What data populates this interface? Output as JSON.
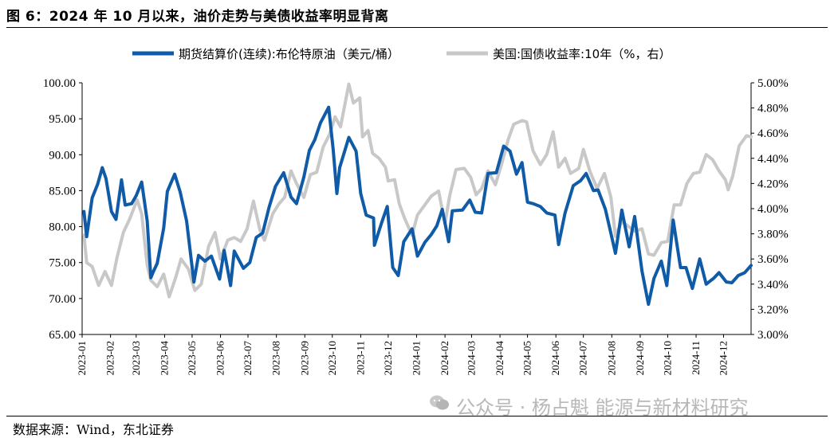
{
  "header": {
    "title": "图 6：2024 年 10 月以来，油价走势与美债收益率明显背离"
  },
  "footer": {
    "source": "数据来源：Wind，东北证券",
    "watermark": "公众号 · 杨占魁 能源与新材料研究"
  },
  "colors": {
    "brent": "#0F5BA7",
    "treasury": "#C8C8C8"
  },
  "chart_data": {
    "type": "line",
    "legend_placement": "top-center",
    "grid": false,
    "x_range": [
      "2023-01-01",
      "2024-12-31"
    ],
    "x_ticks": [
      "2023-01",
      "2023-02",
      "2023-03",
      "2023-04",
      "2023-05",
      "2023-06",
      "2023-07",
      "2023-08",
      "2023-09",
      "2023-10",
      "2023-11",
      "2023-12",
      "2024-01",
      "2024-02",
      "2024-03",
      "2024-04",
      "2024-05",
      "2024-06",
      "2024-07",
      "2024-08",
      "2024-09",
      "2024-10",
      "2024-11",
      "2024-12"
    ],
    "y_left": {
      "min": 65,
      "max": 100,
      "step": 5,
      "tick_labels": [
        "65.00",
        "70.00",
        "75.00",
        "80.00",
        "85.00",
        "90.00",
        "95.00",
        "100.00"
      ]
    },
    "y_right": {
      "min": 3.0,
      "max": 5.0,
      "step": 0.2,
      "tick_labels": [
        "3.00%",
        "3.20%",
        "3.40%",
        "3.60%",
        "3.80%",
        "4.00%",
        "4.20%",
        "4.40%",
        "4.60%",
        "4.80%",
        "5.00%"
      ]
    },
    "series": [
      {
        "name": "期货结算价(连续):布伦特原油（美元/桶）",
        "axis": "left",
        "color": "#0F5BA7",
        "points": [
          [
            "2023-01-03",
            82.1
          ],
          [
            "2023-01-06",
            78.6
          ],
          [
            "2023-01-12",
            84.0
          ],
          [
            "2023-01-18",
            85.9
          ],
          [
            "2023-01-23",
            88.2
          ],
          [
            "2023-01-27",
            86.7
          ],
          [
            "2023-02-02",
            82.1
          ],
          [
            "2023-02-07",
            81.0
          ],
          [
            "2023-02-13",
            86.5
          ],
          [
            "2023-02-17",
            83.0
          ],
          [
            "2023-02-24",
            83.2
          ],
          [
            "2023-03-01",
            84.3
          ],
          [
            "2023-03-07",
            86.2
          ],
          [
            "2023-03-13",
            80.8
          ],
          [
            "2023-03-17",
            72.9
          ],
          [
            "2023-03-20",
            73.8
          ],
          [
            "2023-03-24",
            74.9
          ],
          [
            "2023-03-31",
            79.8
          ],
          [
            "2023-04-04",
            84.9
          ],
          [
            "2023-04-12",
            87.3
          ],
          [
            "2023-04-18",
            84.8
          ],
          [
            "2023-04-25",
            80.8
          ],
          [
            "2023-05-03",
            72.3
          ],
          [
            "2023-05-08",
            76.0
          ],
          [
            "2023-05-15",
            75.2
          ],
          [
            "2023-05-22",
            75.9
          ],
          [
            "2023-05-31",
            72.7
          ],
          [
            "2023-06-05",
            76.7
          ],
          [
            "2023-06-12",
            71.8
          ],
          [
            "2023-06-16",
            76.6
          ],
          [
            "2023-06-26",
            74.2
          ],
          [
            "2023-07-03",
            75.0
          ],
          [
            "2023-07-10",
            78.5
          ],
          [
            "2023-07-17",
            79.1
          ],
          [
            "2023-07-24",
            82.7
          ],
          [
            "2023-07-31",
            85.6
          ],
          [
            "2023-08-09",
            87.5
          ],
          [
            "2023-08-17",
            84.1
          ],
          [
            "2023-08-23",
            83.2
          ],
          [
            "2023-08-31",
            86.9
          ],
          [
            "2023-09-06",
            90.6
          ],
          [
            "2023-09-12",
            92.1
          ],
          [
            "2023-09-18",
            94.4
          ],
          [
            "2023-09-27",
            96.6
          ],
          [
            "2023-10-02",
            90.7
          ],
          [
            "2023-10-06",
            84.6
          ],
          [
            "2023-10-09",
            88.2
          ],
          [
            "2023-10-19",
            92.4
          ],
          [
            "2023-10-27",
            90.5
          ],
          [
            "2023-11-01",
            84.6
          ],
          [
            "2023-11-07",
            81.6
          ],
          [
            "2023-11-15",
            81.2
          ],
          [
            "2023-11-16",
            77.4
          ],
          [
            "2023-11-24",
            80.6
          ],
          [
            "2023-11-30",
            82.8
          ],
          [
            "2023-12-06",
            74.3
          ],
          [
            "2023-12-12",
            73.2
          ],
          [
            "2023-12-18",
            77.9
          ],
          [
            "2023-12-27",
            79.7
          ],
          [
            "2024-01-02",
            75.9
          ],
          [
            "2024-01-10",
            77.8
          ],
          [
            "2024-01-17",
            78.9
          ],
          [
            "2024-01-23",
            80.1
          ],
          [
            "2024-01-29",
            82.4
          ],
          [
            "2024-02-05",
            77.9
          ],
          [
            "2024-02-09",
            82.2
          ],
          [
            "2024-02-20",
            82.3
          ],
          [
            "2024-02-28",
            83.7
          ],
          [
            "2024-03-05",
            82.0
          ],
          [
            "2024-03-12",
            81.9
          ],
          [
            "2024-03-19",
            87.4
          ],
          [
            "2024-03-28",
            87.5
          ],
          [
            "2024-04-05",
            91.2
          ],
          [
            "2024-04-12",
            90.5
          ],
          [
            "2024-04-19",
            87.3
          ],
          [
            "2024-04-25",
            88.9
          ],
          [
            "2024-05-01",
            83.4
          ],
          [
            "2024-05-07",
            83.2
          ],
          [
            "2024-05-15",
            82.8
          ],
          [
            "2024-05-22",
            81.9
          ],
          [
            "2024-05-31",
            81.6
          ],
          [
            "2024-06-04",
            77.5
          ],
          [
            "2024-06-11",
            81.9
          ],
          [
            "2024-06-20",
            85.7
          ],
          [
            "2024-06-28",
            86.4
          ],
          [
            "2024-07-04",
            87.4
          ],
          [
            "2024-07-12",
            85.0
          ],
          [
            "2024-07-17",
            85.1
          ],
          [
            "2024-07-25",
            82.4
          ],
          [
            "2024-08-05",
            76.3
          ],
          [
            "2024-08-09",
            79.7
          ],
          [
            "2024-08-12",
            82.3
          ],
          [
            "2024-08-20",
            77.2
          ],
          [
            "2024-08-26",
            81.4
          ],
          [
            "2024-09-03",
            73.8
          ],
          [
            "2024-09-10",
            69.2
          ],
          [
            "2024-09-16",
            72.8
          ],
          [
            "2024-09-24",
            75.2
          ],
          [
            "2024-09-30",
            71.8
          ],
          [
            "2024-10-07",
            80.9
          ],
          [
            "2024-10-15",
            74.3
          ],
          [
            "2024-10-21",
            74.3
          ],
          [
            "2024-10-28",
            71.4
          ],
          [
            "2024-11-05",
            75.5
          ],
          [
            "2024-11-12",
            72.0
          ],
          [
            "2024-11-20",
            72.8
          ],
          [
            "2024-11-26",
            73.6
          ],
          [
            "2024-12-04",
            72.3
          ],
          [
            "2024-12-10",
            72.2
          ],
          [
            "2024-12-17",
            73.2
          ],
          [
            "2024-12-24",
            73.6
          ],
          [
            "2024-12-31",
            74.6
          ]
        ]
      },
      {
        "name": "美国:国债收益率:10年（%，右）",
        "axis": "right",
        "color": "#C8C8C8",
        "points": [
          [
            "2023-01-03",
            3.79
          ],
          [
            "2023-01-06",
            3.57
          ],
          [
            "2023-01-12",
            3.54
          ],
          [
            "2023-01-19",
            3.39
          ],
          [
            "2023-01-26",
            3.5
          ],
          [
            "2023-02-02",
            3.39
          ],
          [
            "2023-02-08",
            3.61
          ],
          [
            "2023-02-15",
            3.81
          ],
          [
            "2023-02-22",
            3.92
          ],
          [
            "2023-03-02",
            4.07
          ],
          [
            "2023-03-07",
            3.96
          ],
          [
            "2023-03-13",
            3.55
          ],
          [
            "2023-03-17",
            3.43
          ],
          [
            "2023-03-24",
            3.38
          ],
          [
            "2023-03-31",
            3.48
          ],
          [
            "2023-04-06",
            3.3
          ],
          [
            "2023-04-13",
            3.45
          ],
          [
            "2023-04-19",
            3.6
          ],
          [
            "2023-04-27",
            3.52
          ],
          [
            "2023-05-04",
            3.35
          ],
          [
            "2023-05-11",
            3.4
          ],
          [
            "2023-05-19",
            3.7
          ],
          [
            "2023-05-26",
            3.81
          ],
          [
            "2023-06-01",
            3.6
          ],
          [
            "2023-06-09",
            3.75
          ],
          [
            "2023-06-16",
            3.77
          ],
          [
            "2023-06-23",
            3.74
          ],
          [
            "2023-06-30",
            3.84
          ],
          [
            "2023-07-07",
            4.06
          ],
          [
            "2023-07-14",
            3.83
          ],
          [
            "2023-07-19",
            3.75
          ],
          [
            "2023-07-28",
            3.96
          ],
          [
            "2023-08-04",
            4.04
          ],
          [
            "2023-08-10",
            4.09
          ],
          [
            "2023-08-17",
            4.3
          ],
          [
            "2023-08-23",
            4.2
          ],
          [
            "2023-08-31",
            4.09
          ],
          [
            "2023-09-07",
            4.27
          ],
          [
            "2023-09-14",
            4.29
          ],
          [
            "2023-09-21",
            4.49
          ],
          [
            "2023-09-28",
            4.59
          ],
          [
            "2023-10-04",
            4.73
          ],
          [
            "2023-10-10",
            4.65
          ],
          [
            "2023-10-19",
            4.99
          ],
          [
            "2023-10-24",
            4.84
          ],
          [
            "2023-10-31",
            4.88
          ],
          [
            "2023-11-03",
            4.57
          ],
          [
            "2023-11-09",
            4.62
          ],
          [
            "2023-11-14",
            4.44
          ],
          [
            "2023-11-21",
            4.4
          ],
          [
            "2023-11-28",
            4.33
          ],
          [
            "2023-12-01",
            4.22
          ],
          [
            "2023-12-08",
            4.23
          ],
          [
            "2023-12-13",
            4.04
          ],
          [
            "2023-12-19",
            3.92
          ],
          [
            "2023-12-27",
            3.79
          ],
          [
            "2024-01-02",
            3.95
          ],
          [
            "2024-01-10",
            4.03
          ],
          [
            "2024-01-17",
            4.1
          ],
          [
            "2024-01-25",
            4.14
          ],
          [
            "2024-02-01",
            3.88
          ],
          [
            "2024-02-06",
            4.1
          ],
          [
            "2024-02-13",
            4.31
          ],
          [
            "2024-02-22",
            4.32
          ],
          [
            "2024-02-29",
            4.25
          ],
          [
            "2024-03-06",
            4.11
          ],
          [
            "2024-03-12",
            4.16
          ],
          [
            "2024-03-19",
            4.3
          ],
          [
            "2024-03-27",
            4.19
          ],
          [
            "2024-04-03",
            4.36
          ],
          [
            "2024-04-10",
            4.55
          ],
          [
            "2024-04-16",
            4.67
          ],
          [
            "2024-04-25",
            4.7
          ],
          [
            "2024-04-30",
            4.69
          ],
          [
            "2024-05-07",
            4.46
          ],
          [
            "2024-05-15",
            4.35
          ],
          [
            "2024-05-22",
            4.43
          ],
          [
            "2024-05-29",
            4.61
          ],
          [
            "2024-06-04",
            4.33
          ],
          [
            "2024-06-11",
            4.4
          ],
          [
            "2024-06-17",
            4.28
          ],
          [
            "2024-06-26",
            4.32
          ],
          [
            "2024-07-01",
            4.47
          ],
          [
            "2024-07-08",
            4.3
          ],
          [
            "2024-07-16",
            4.16
          ],
          [
            "2024-07-24",
            4.28
          ],
          [
            "2024-07-31",
            4.09
          ],
          [
            "2024-08-05",
            3.78
          ],
          [
            "2024-08-12",
            3.9
          ],
          [
            "2024-08-19",
            3.86
          ],
          [
            "2024-08-26",
            3.82
          ],
          [
            "2024-09-03",
            3.84
          ],
          [
            "2024-09-10",
            3.64
          ],
          [
            "2024-09-16",
            3.63
          ],
          [
            "2024-09-24",
            3.73
          ],
          [
            "2024-10-01",
            3.74
          ],
          [
            "2024-10-08",
            4.03
          ],
          [
            "2024-10-15",
            4.03
          ],
          [
            "2024-10-22",
            4.2
          ],
          [
            "2024-10-29",
            4.28
          ],
          [
            "2024-11-05",
            4.29
          ],
          [
            "2024-11-12",
            4.43
          ],
          [
            "2024-11-19",
            4.39
          ],
          [
            "2024-11-26",
            4.3
          ],
          [
            "2024-12-03",
            4.23
          ],
          [
            "2024-12-06",
            4.15
          ],
          [
            "2024-12-11",
            4.26
          ],
          [
            "2024-12-18",
            4.5
          ],
          [
            "2024-12-26",
            4.58
          ],
          [
            "2024-12-31",
            4.57
          ]
        ]
      }
    ]
  }
}
